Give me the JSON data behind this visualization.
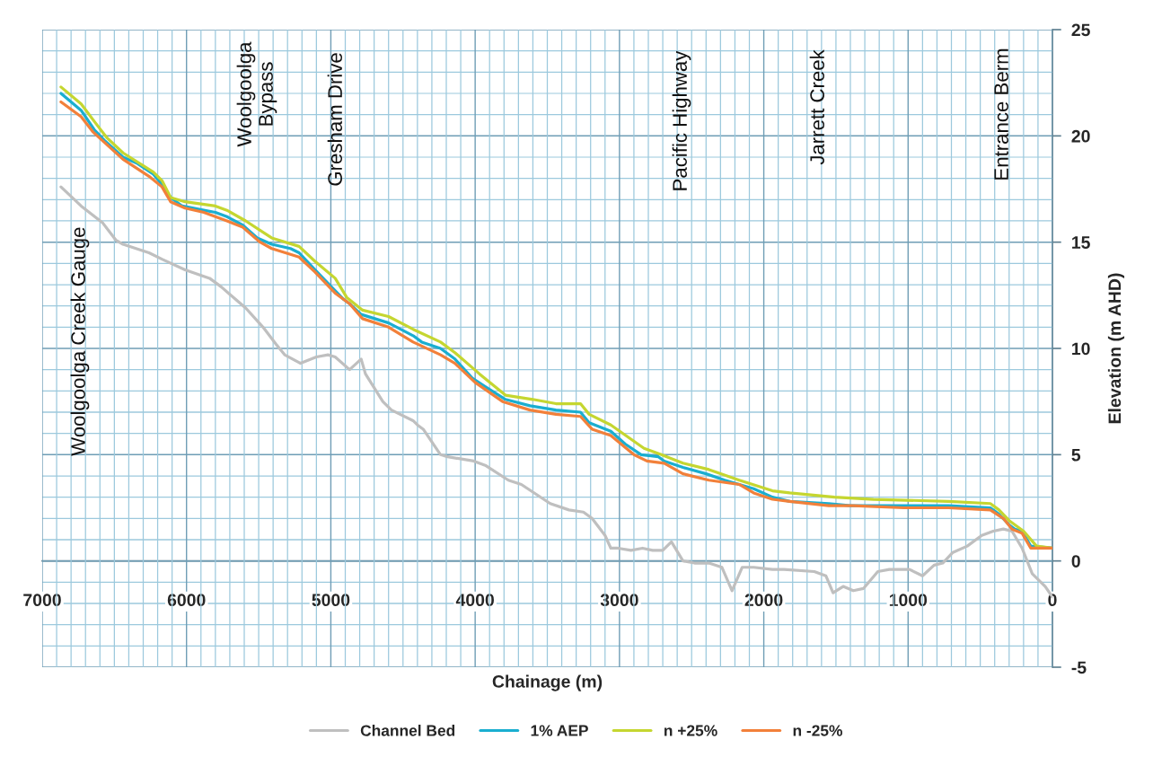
{
  "chart_data": {
    "type": "line",
    "xlabel": "Chainage (m)",
    "ylabel": "Elevation (m AHD)",
    "xlim": [
      7000,
      0
    ],
    "xticks": [
      7000,
      {
        "value": 6900,
        "label": null
      },
      {
        "value": 6800,
        "label": null
      },
      {
        "value": 6700,
        "label": null
      },
      {
        "value": 6600,
        "label": null
      },
      {
        "value": 6500,
        "label": null
      },
      {
        "value": 6400,
        "label": null
      },
      {
        "value": 6300,
        "label": null
      },
      {
        "value": 6200,
        "label": null
      },
      {
        "value": 6100,
        "label": null
      },
      6000,
      {
        "value": 5900,
        "label": null
      },
      {
        "value": 5800,
        "label": null
      },
      {
        "value": 5700,
        "label": null
      },
      {
        "value": 5600,
        "label": null
      },
      {
        "value": 5500,
        "label": null
      },
      {
        "value": 5400,
        "label": null
      },
      {
        "value": 5300,
        "label": null
      },
      {
        "value": 5200,
        "label": null
      },
      {
        "value": 5100,
        "label": null
      },
      5000,
      {
        "value": 4900,
        "label": null
      },
      {
        "value": 4800,
        "label": null
      },
      {
        "value": 4700,
        "label": null
      },
      {
        "value": 4600,
        "label": null
      },
      {
        "value": 4500,
        "label": null
      },
      {
        "value": 4400,
        "label": null
      },
      {
        "value": 4300,
        "label": null
      },
      {
        "value": 4200,
        "label": null
      },
      {
        "value": 4100,
        "label": null
      },
      4000,
      {
        "value": 3900,
        "label": null
      },
      {
        "value": 3800,
        "label": null
      },
      {
        "value": 3700,
        "label": null
      },
      {
        "value": 3600,
        "label": null
      },
      {
        "value": 3500,
        "label": null
      },
      {
        "value": 3400,
        "label": null
      },
      {
        "value": 3300,
        "label": null
      },
      {
        "value": 3200,
        "label": null
      },
      {
        "value": 3100,
        "label": null
      },
      3000,
      {
        "value": 2900,
        "label": null
      },
      {
        "value": 2800,
        "label": null
      },
      {
        "value": 2700,
        "label": null
      },
      {
        "value": 2600,
        "label": null
      },
      {
        "value": 2500,
        "label": null
      },
      {
        "value": 2400,
        "label": null
      },
      {
        "value": 2300,
        "label": null
      },
      {
        "value": 2200,
        "label": null
      },
      {
        "value": 2100,
        "label": null
      },
      2000,
      {
        "value": 1900,
        "label": null
      },
      {
        "value": 1800,
        "label": null
      },
      {
        "value": 1700,
        "label": null
      },
      {
        "value": 1600,
        "label": null
      },
      {
        "value": 1500,
        "label": null
      },
      {
        "value": 1400,
        "label": null
      },
      {
        "value": 1300,
        "label": null
      },
      {
        "value": 1200,
        "label": null
      },
      {
        "value": 1100,
        "label": null
      },
      1000,
      {
        "value": 900,
        "label": null
      },
      {
        "value": 800,
        "label": null
      },
      {
        "value": 700,
        "label": null
      },
      {
        "value": 600,
        "label": null
      },
      {
        "value": 500,
        "label": null
      },
      {
        "value": 400,
        "label": null
      },
      {
        "value": 300,
        "label": null
      },
      {
        "value": 200,
        "label": null
      },
      {
        "value": 100,
        "label": null
      },
      0
    ],
    "ylim": [
      -5,
      25
    ],
    "yticks": [
      -5,
      {
        "value": -4,
        "label": null
      },
      {
        "value": -3,
        "label": null
      },
      {
        "value": -2,
        "label": null
      },
      {
        "value": -1,
        "label": null
      },
      0,
      {
        "value": 1,
        "label": null
      },
      {
        "value": 2,
        "label": null
      },
      {
        "value": 3,
        "label": null
      },
      {
        "value": 4,
        "label": null
      },
      5,
      {
        "value": 6,
        "label": null
      },
      {
        "value": 7,
        "label": null
      },
      {
        "value": 8,
        "label": null
      },
      {
        "value": 9,
        "label": null
      },
      10,
      {
        "value": 11,
        "label": null
      },
      {
        "value": 12,
        "label": null
      },
      {
        "value": 13,
        "label": null
      },
      {
        "value": 14,
        "label": null
      },
      15,
      {
        "value": 16,
        "label": null
      },
      {
        "value": 17,
        "label": null
      },
      {
        "value": 18,
        "label": null
      },
      {
        "value": 19,
        "label": null
      },
      20,
      {
        "value": 21,
        "label": null
      },
      {
        "value": 22,
        "label": null
      },
      {
        "value": 23,
        "label": null
      },
      {
        "value": 24,
        "label": null
      },
      25
    ],
    "grid": true,
    "legend": "bottom",
    "annotations": [
      "Woolgoolga Creek Gauge",
      "Woolgoolga\nBypass",
      "Gresham Drive",
      "Pacific Highway",
      "Jarrett Creek",
      "Entrance Berm"
    ],
    "series": [
      {
        "name": "Channel Bed",
        "color": "#bfbfbf",
        "x": [
          6870,
          6730,
          6580,
          6490,
          6440,
          6260,
          6170,
          6010,
          5840,
          5760,
          5590,
          5470,
          5380,
          5320,
          5210,
          5100,
          5020,
          4970,
          4870,
          4790,
          4760,
          4640,
          4580,
          4430,
          4400,
          4360,
          4240,
          4190,
          4010,
          3930,
          3770,
          3680,
          3480,
          3350,
          3250,
          3190,
          3100,
          3060,
          3010,
          2920,
          2840,
          2770,
          2700,
          2640,
          2560,
          2480,
          2380,
          2290,
          2220,
          2150,
          2070,
          1940,
          1860,
          1650,
          1570,
          1520,
          1450,
          1380,
          1310,
          1210,
          1130,
          990,
          900,
          820,
          760,
          690,
          590,
          490,
          410,
          340,
          280,
          210,
          140,
          50,
          0
        ],
        "values": [
          17.6,
          16.7,
          15.9,
          15.1,
          14.9,
          14.5,
          14.2,
          13.7,
          13.3,
          12.9,
          11.9,
          11.0,
          10.2,
          9.7,
          9.3,
          9.6,
          9.7,
          9.6,
          9.0,
          9.5,
          8.8,
          7.5,
          7.1,
          6.6,
          6.4,
          6.2,
          5.0,
          4.9,
          4.7,
          4.5,
          3.8,
          3.6,
          2.7,
          2.4,
          2.3,
          2.0,
          1.2,
          0.6,
          0.6,
          0.5,
          0.6,
          0.5,
          0.5,
          0.9,
          0.0,
          -0.1,
          -0.1,
          -0.3,
          -1.4,
          -0.3,
          -0.3,
          -0.4,
          -0.4,
          -0.5,
          -0.7,
          -1.5,
          -1.2,
          -1.4,
          -1.3,
          -0.5,
          -0.4,
          -0.4,
          -0.7,
          -0.2,
          -0.1,
          0.4,
          0.7,
          1.2,
          1.4,
          1.5,
          1.4,
          0.6,
          -0.6,
          -1.2,
          -1.7
        ]
      },
      {
        "name": "1% AEP",
        "color": "#1aaed0",
        "x": [
          6870,
          6730,
          6640,
          6570,
          6440,
          6340,
          6230,
          6180,
          6110,
          6030,
          5880,
          5800,
          5720,
          5610,
          5510,
          5410,
          5280,
          5220,
          5110,
          5010,
          4910,
          4870,
          4790,
          4600,
          4430,
          4370,
          4240,
          4140,
          4020,
          3930,
          3790,
          3620,
          3440,
          3270,
          3210,
          3060,
          2960,
          2850,
          2730,
          2690,
          2560,
          2400,
          2270,
          2170,
          2070,
          1940,
          1820,
          1550,
          1400,
          1030,
          720,
          430,
          370,
          300,
          260,
          210,
          150,
          0
        ],
        "values": [
          22.0,
          21.2,
          20.3,
          19.8,
          19.0,
          18.7,
          18.2,
          17.8,
          17.1,
          16.7,
          16.5,
          16.4,
          16.2,
          15.8,
          15.2,
          14.9,
          14.7,
          14.5,
          13.7,
          13.0,
          12.3,
          12.1,
          11.6,
          11.2,
          10.6,
          10.3,
          10.0,
          9.5,
          8.6,
          8.2,
          7.6,
          7.3,
          7.1,
          7.0,
          6.5,
          6.1,
          5.5,
          5.0,
          4.9,
          4.7,
          4.4,
          4.1,
          3.8,
          3.6,
          3.4,
          3.0,
          2.8,
          2.7,
          2.6,
          2.6,
          2.6,
          2.5,
          2.2,
          1.7,
          1.5,
          1.4,
          0.7,
          0.6
        ]
      },
      {
        "name": "n +25%",
        "color": "#c5d630",
        "x": [
          6870,
          6730,
          6630,
          6550,
          6440,
          6230,
          6170,
          6110,
          6010,
          5800,
          5720,
          5590,
          5410,
          5220,
          5110,
          4970,
          4890,
          4780,
          4600,
          4430,
          4240,
          4140,
          3970,
          3790,
          3600,
          3440,
          3270,
          3210,
          3060,
          2830,
          2710,
          2560,
          2380,
          2170,
          1940,
          1820,
          1510,
          1240,
          720,
          430,
          370,
          300,
          200,
          110,
          0
        ],
        "values": [
          22.3,
          21.5,
          20.6,
          19.9,
          19.2,
          18.3,
          17.9,
          17.1,
          16.9,
          16.7,
          16.5,
          16.0,
          15.2,
          14.8,
          14.1,
          13.3,
          12.4,
          11.8,
          11.5,
          10.9,
          10.3,
          9.8,
          8.8,
          7.8,
          7.6,
          7.4,
          7.4,
          6.9,
          6.4,
          5.3,
          5.0,
          4.6,
          4.3,
          3.8,
          3.3,
          3.2,
          3.0,
          2.9,
          2.8,
          2.7,
          2.4,
          1.9,
          1.4,
          0.7,
          0.6
        ]
      },
      {
        "name": "n -25%",
        "color": "#f2803a",
        "x": [
          6870,
          6730,
          6650,
          6570,
          6440,
          6260,
          6170,
          6110,
          6010,
          5880,
          5720,
          5610,
          5490,
          5410,
          5220,
          5110,
          4970,
          4870,
          4780,
          4600,
          4430,
          4240,
          4140,
          4000,
          3810,
          3620,
          3440,
          3270,
          3190,
          3060,
          2900,
          2810,
          2690,
          2560,
          2380,
          2170,
          2070,
          1940,
          1820,
          1550,
          1380,
          1030,
          720,
          430,
          340,
          280,
          210,
          150,
          0
        ],
        "values": [
          21.6,
          20.9,
          20.2,
          19.7,
          18.9,
          18.1,
          17.6,
          16.9,
          16.6,
          16.4,
          16.0,
          15.7,
          15.0,
          14.7,
          14.3,
          13.6,
          12.6,
          12.1,
          11.4,
          11.0,
          10.3,
          9.7,
          9.3,
          8.4,
          7.5,
          7.1,
          6.9,
          6.8,
          6.2,
          5.9,
          5.0,
          4.7,
          4.6,
          4.1,
          3.8,
          3.6,
          3.2,
          2.9,
          2.8,
          2.6,
          2.6,
          2.5,
          2.5,
          2.4,
          2.0,
          1.5,
          1.3,
          0.6,
          0.6
        ]
      }
    ]
  }
}
